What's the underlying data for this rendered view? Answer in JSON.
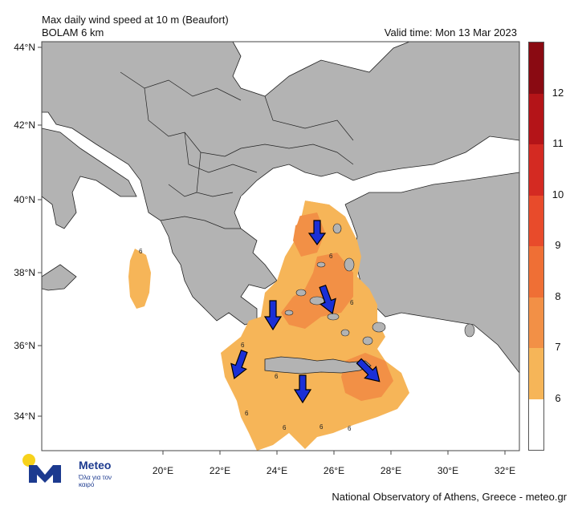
{
  "header": {
    "title": "Max daily wind speed at 10 m (Beaufort)",
    "model": "BOLAM 6 km",
    "valid_time": "Valid time: Mon 13 Mar 2023"
  },
  "axes": {
    "lat_labels": [
      "44°N",
      "42°N",
      "40°N",
      "38°N",
      "36°N",
      "34°N"
    ],
    "lon_labels": [
      "20°E",
      "22°E",
      "24°E",
      "26°E",
      "28°E",
      "30°E",
      "32°E"
    ]
  },
  "colorbar": {
    "levels": [
      "6",
      "7",
      "8",
      "9",
      "10",
      "11",
      "12"
    ],
    "colors": [
      "#ffffff",
      "#f6b558",
      "#f29046",
      "#ef6f35",
      "#e84b2b",
      "#d42a22",
      "#b41418",
      "#8a0a12"
    ]
  },
  "map_labels": [
    "6",
    "6",
    "6",
    "6",
    "6",
    "6",
    "6",
    "6",
    "6"
  ],
  "footer": "National Observatory of Athens, Greece - meteo.gr",
  "logo": {
    "name": "Meteo",
    "tagline": "Όλα για τον καιρό"
  },
  "icons": [
    "wind-direction-arrow-icon",
    "meteo-logo-icon"
  ]
}
